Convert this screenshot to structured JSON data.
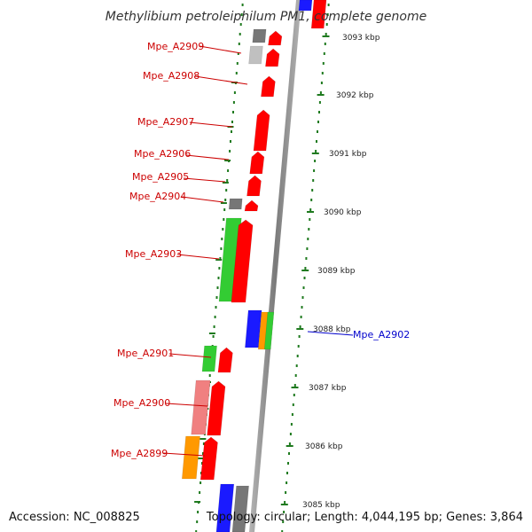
{
  "title": "Methylibium petroleiphilum PM1, complete genome",
  "footer": {
    "accession": "Accession: NC_008825",
    "topology": "Topology: circular; Length: 4,044,195 bp; Genes: 3,864"
  },
  "colors": {
    "backbone": "#8c8c8c",
    "ruler": "#1f7a1f",
    "gene_label": "#cc0000",
    "highlight_label": "#0000cc",
    "forward_gene": "#ff0000",
    "green_gene": "#33cc33",
    "blue_gene": "#1a1aff",
    "orange_gene": "#ff9900",
    "gray_gene": "#777777",
    "light_gray_gene": "#c0c0c0",
    "pink_gene": "#f08080"
  },
  "ticks": [
    "3093 kbp",
    "3092 kbp",
    "3091 kbp",
    "3090 kbp",
    "3089 kbp",
    "3088 kbp",
    "3087 kbp",
    "3086 kbp",
    "3085 kbp"
  ],
  "gene_labels": [
    {
      "text": "Mpe_A2909",
      "color": "red"
    },
    {
      "text": "Mpe_A2908",
      "color": "red"
    },
    {
      "text": "Mpe_A2907",
      "color": "red"
    },
    {
      "text": "Mpe_A2906",
      "color": "red"
    },
    {
      "text": "Mpe_A2905",
      "color": "red"
    },
    {
      "text": "Mpe_A2904",
      "color": "red"
    },
    {
      "text": "Mpe_A2903",
      "color": "red"
    },
    {
      "text": "Mpe_A2902",
      "color": "blue"
    },
    {
      "text": "Mpe_A2901",
      "color": "red"
    },
    {
      "text": "Mpe_A2900",
      "color": "red"
    },
    {
      "text": "Mpe_A2899",
      "color": "red"
    }
  ]
}
